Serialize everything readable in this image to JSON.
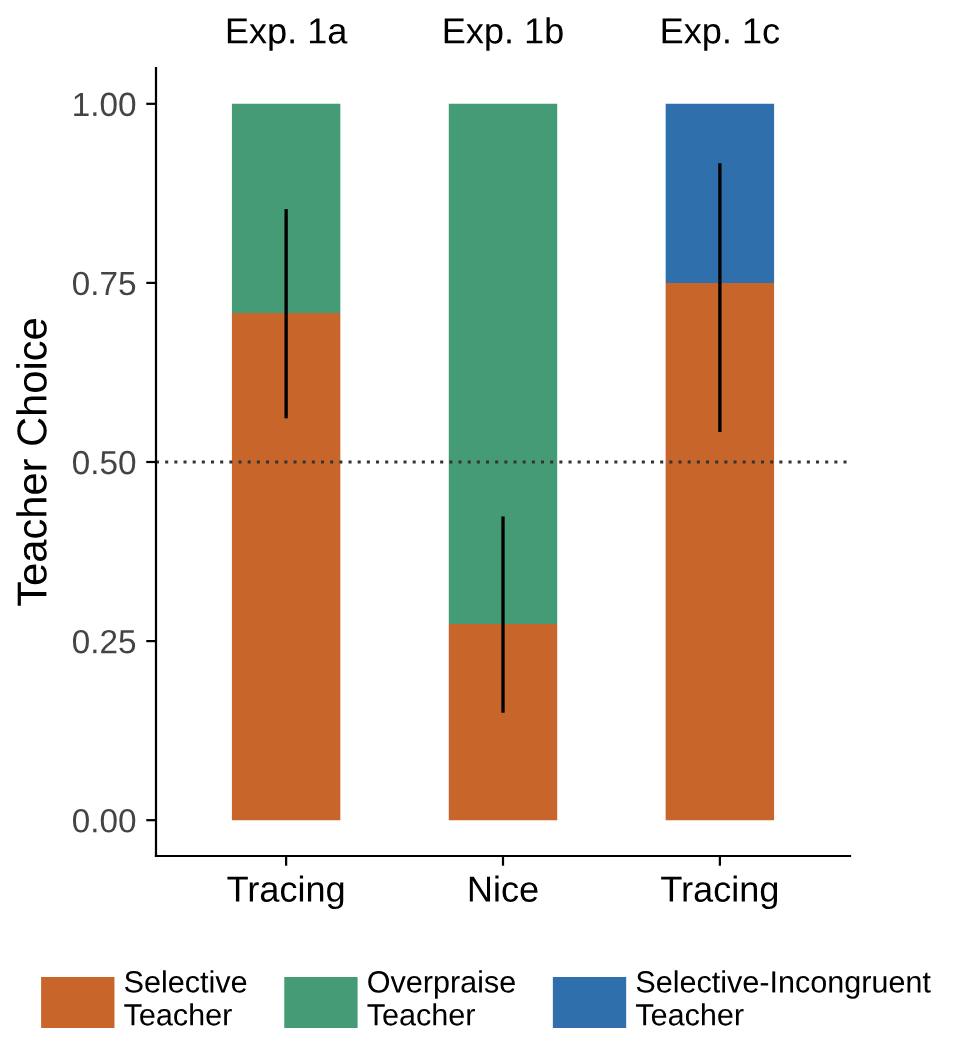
{
  "chart_data": {
    "type": "bar",
    "stacked": true,
    "ylabel": "Teacher Choice",
    "categories": [
      "Tracing",
      "Nice",
      "Tracing"
    ],
    "series": [
      {
        "name": "Selective\nTeacher",
        "color": "#c8652a",
        "values": [
          0.708,
          0.274,
          0.75
        ],
        "errors": [
          [
            0.561,
            0.853
          ],
          [
            0.15,
            0.424
          ],
          [
            0.542,
            0.917
          ]
        ]
      },
      {
        "name": "Overpraise\nTeacher",
        "color": "#469b77",
        "values": [
          0.292,
          0.726,
          null
        ]
      },
      {
        "name": "Selective-Incongruent\nTeacher",
        "color": "#2f6fac",
        "values": [
          null,
          null,
          0.25
        ]
      }
    ],
    "ylim": [
      -0.05,
      1.05
    ],
    "yticks": [
      {
        "value": 0,
        "label": "0.00"
      },
      {
        "value": 0.25,
        "label": "0.25"
      },
      {
        "value": 0.5,
        "label": "0.50"
      },
      {
        "value": 0.75,
        "label": "0.75"
      },
      {
        "value": 1,
        "label": "1.00"
      }
    ],
    "ref_lines": [
      {
        "axis": "y",
        "value": 0.5,
        "line_style": "dotted",
        "color": "#333333"
      }
    ],
    "annotations": [
      "Exp. 1a",
      "Exp. 1b",
      "Exp. 1c"
    ],
    "grid": false,
    "legend": "bottom"
  }
}
